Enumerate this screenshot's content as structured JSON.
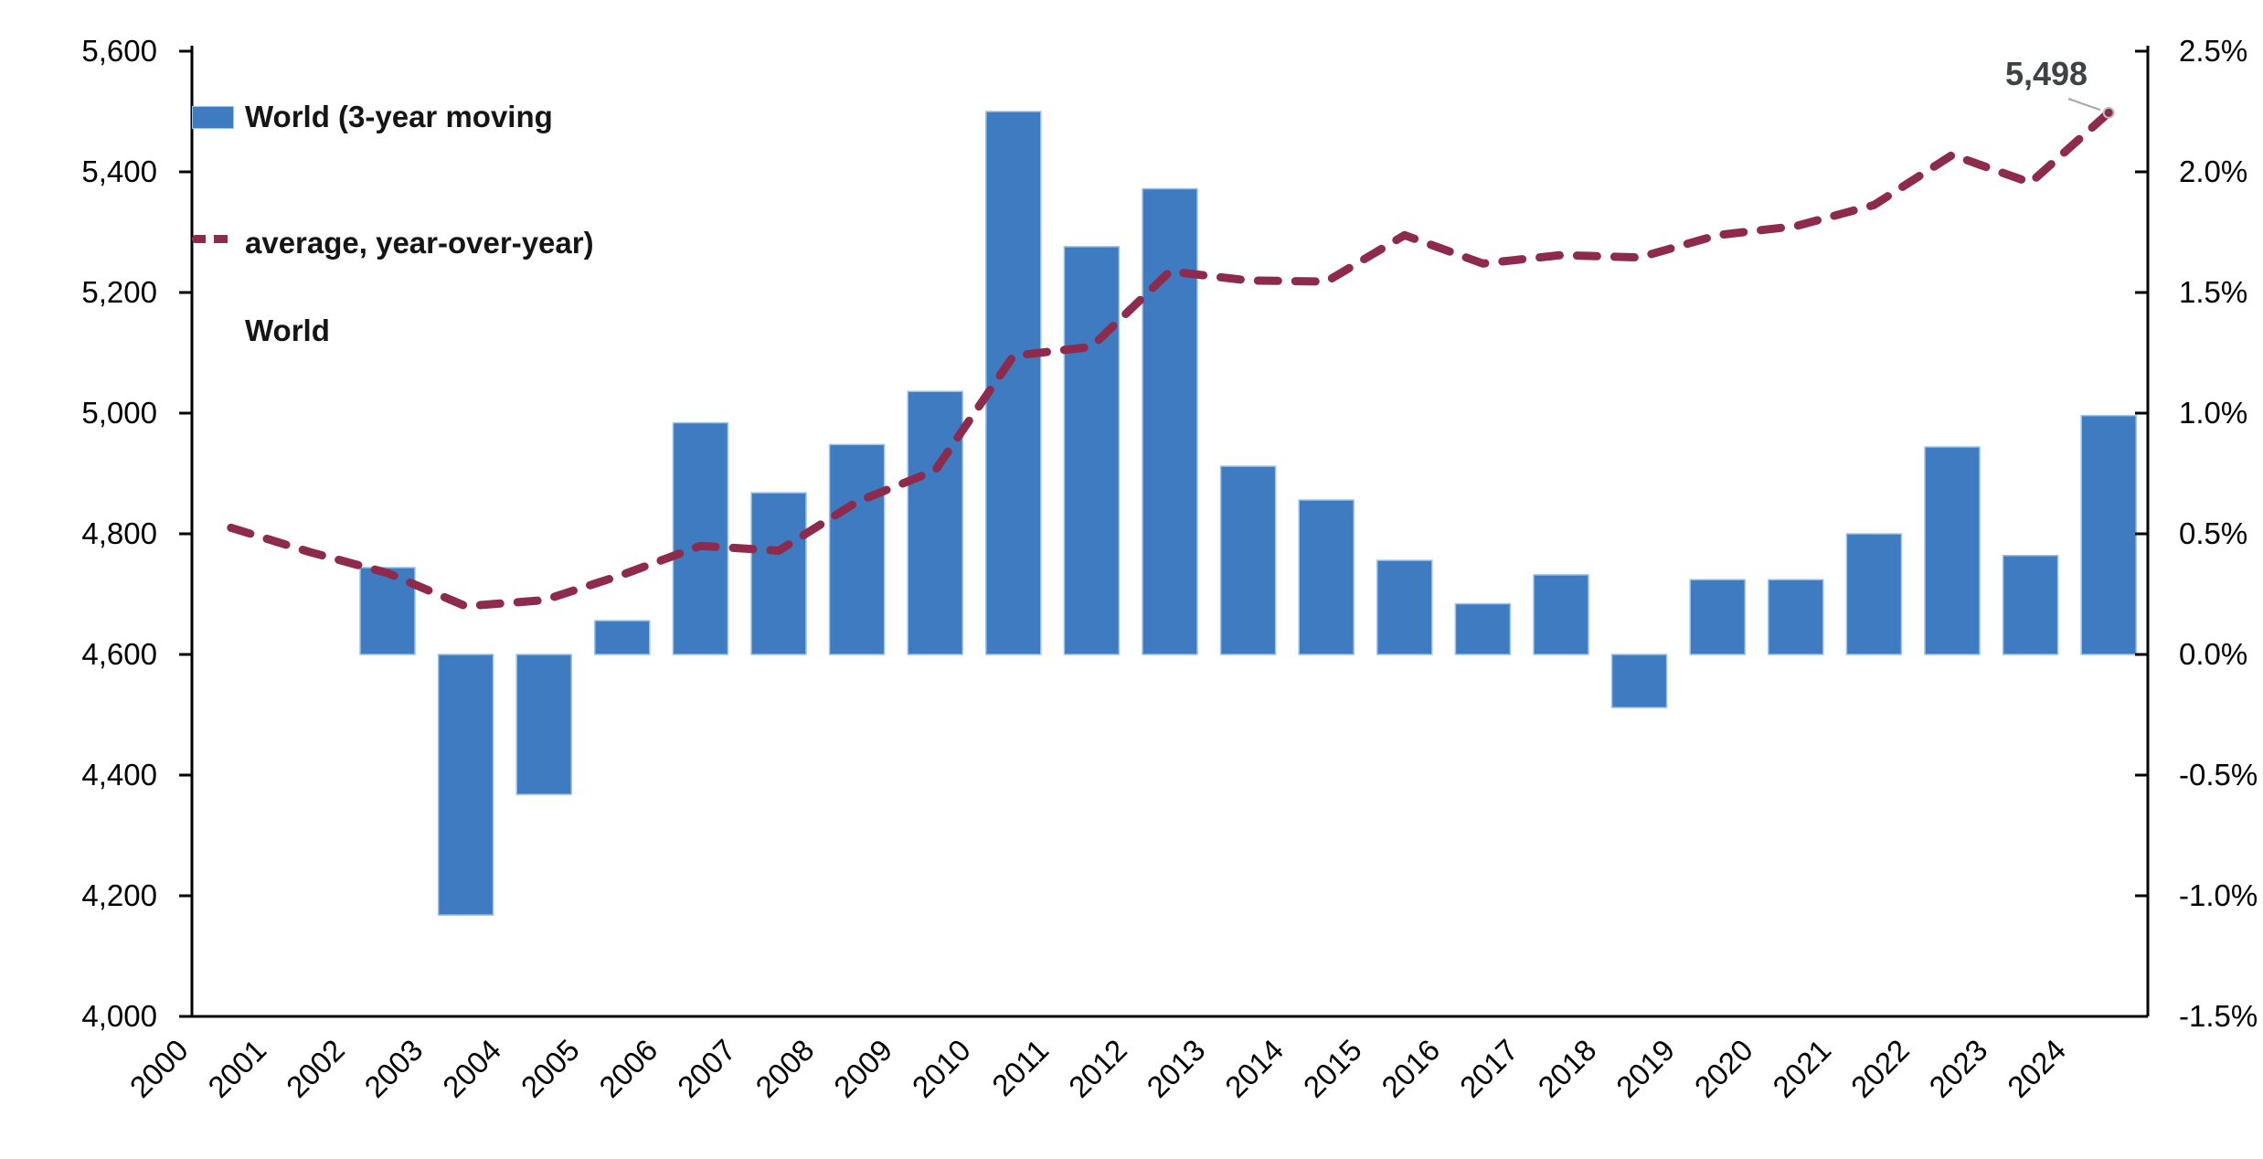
{
  "legend": {
    "bar_label_line1": "World (3-year moving",
    "bar_label_line2": "average, year-over-year)",
    "line_label": "World"
  },
  "annotation": {
    "text": "5,498"
  },
  "colors": {
    "bar_fill": "#3E7BC1",
    "bar_border": "#9DC3E6",
    "line": "#8E2A4B",
    "axis": "#000000",
    "annotation_text": "#3F4245",
    "leader_line": "#A6A6A6",
    "marker_ring": "#BFBFBF"
  },
  "chart_data": {
    "type": "combo_bar_line",
    "title": "",
    "grid": false,
    "legend_position": "top-left-inside",
    "categories": [
      "2000",
      "2001",
      "2002",
      "2003",
      "2004",
      "2005",
      "2006",
      "2007",
      "2008",
      "2009",
      "2010",
      "2011",
      "2012",
      "2013",
      "2014",
      "2015",
      "2016",
      "2017",
      "2018",
      "2019",
      "2020",
      "2021",
      "2022",
      "2023",
      "2024"
    ],
    "series": [
      {
        "name": "World (3-year moving average, year-over-year)",
        "type": "bar",
        "axis": "right",
        "unit": "percent",
        "color": "#3E7BC1",
        "values": [
          null,
          null,
          0.36,
          -1.08,
          -0.58,
          0.14,
          0.96,
          0.67,
          0.87,
          1.09,
          2.25,
          1.69,
          1.93,
          0.78,
          0.64,
          0.39,
          0.21,
          0.33,
          -0.22,
          0.31,
          0.31,
          0.5,
          0.86,
          0.41,
          0.99
        ]
      },
      {
        "name": "World",
        "type": "line",
        "style": "dashed",
        "axis": "left",
        "color": "#8E2A4B",
        "values": [
          4810,
          4770,
          4735,
          4680,
          4690,
          4732,
          4780,
          4772,
          4853,
          4905,
          5095,
          5110,
          5235,
          5220,
          5218,
          5295,
          5248,
          5262,
          5258,
          5295,
          5310,
          5345,
          5428,
          5382,
          5498
        ]
      }
    ],
    "left_axis": {
      "min": 4000,
      "max": 5600,
      "step": 200,
      "labels": [
        "4,000",
        "4,200",
        "4,400",
        "4,600",
        "4,800",
        "5,000",
        "5,200",
        "5,400",
        "5,600"
      ]
    },
    "right_axis": {
      "min": -1.5,
      "max": 2.5,
      "step": 0.5,
      "labels": [
        "-1.5%",
        "-1.0%",
        "-0.5%",
        "0.0%",
        "0.5%",
        "1.0%",
        "1.5%",
        "2.0%",
        "2.5%"
      ]
    },
    "annotation": {
      "text": "5,498",
      "series": "World",
      "category": "2024"
    }
  }
}
